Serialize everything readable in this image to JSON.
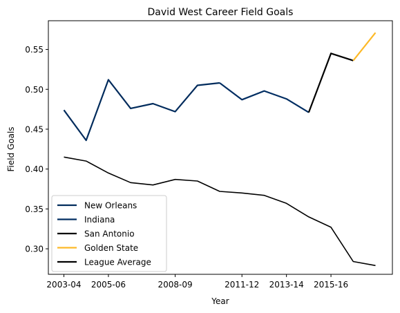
{
  "chart_data": {
    "type": "line",
    "title": "David West  Career Field Goals",
    "xlabel": "Year",
    "ylabel": "Field Goals",
    "seasons": [
      "2003-04",
      "2004-05",
      "2005-06",
      "2006-07",
      "2007-08",
      "2008-09",
      "2009-10",
      "2010-11",
      "2011-12",
      "2012-13",
      "2013-14",
      "2014-15",
      "2015-16",
      "2016-17",
      "2017-18"
    ],
    "xticks": [
      "2003-04",
      "2005-06",
      "2008-09",
      "2011-12",
      "2013-14",
      "2015-16"
    ],
    "ylim": [
      0.268,
      0.586
    ],
    "yticks": [
      0.3,
      0.35,
      0.4,
      0.45,
      0.5,
      0.55
    ],
    "grid": false,
    "legend_position": "lower-left",
    "series": [
      {
        "name": "New Orleans",
        "color": "#002b5c",
        "x": [
          "2003-04",
          "2004-05",
          "2005-06",
          "2006-07",
          "2007-08",
          "2008-09",
          "2009-10",
          "2010-11"
        ],
        "values": [
          0.474,
          0.436,
          0.512,
          0.476,
          0.482,
          0.472,
          0.505,
          0.508
        ]
      },
      {
        "name": "Indiana",
        "color": "#002d62",
        "x": [
          "2010-11",
          "2011-12",
          "2012-13",
          "2013-14",
          "2014-15"
        ],
        "values": [
          0.508,
          0.487,
          0.498,
          0.488,
          0.471
        ]
      },
      {
        "name": "San Antonio",
        "color": "#000000",
        "x": [
          "2014-15",
          "2015-16",
          "2016-17"
        ],
        "values": [
          0.471,
          0.545,
          0.536
        ]
      },
      {
        "name": "Golden State",
        "color": "#fdb927",
        "x": [
          "2016-17",
          "2017-18"
        ],
        "values": [
          0.536,
          0.571
        ]
      },
      {
        "name": "League Average",
        "color": "#000000",
        "x": [
          "2003-04",
          "2004-05",
          "2005-06",
          "2006-07",
          "2007-08",
          "2008-09",
          "2009-10",
          "2010-11",
          "2011-12",
          "2012-13",
          "2013-14",
          "2014-15",
          "2015-16",
          "2016-17",
          "2017-18"
        ],
        "values": [
          0.415,
          0.41,
          0.395,
          0.383,
          0.38,
          0.387,
          0.385,
          0.372,
          0.37,
          0.367,
          0.357,
          0.34,
          0.327,
          0.284,
          0.279
        ]
      }
    ]
  }
}
